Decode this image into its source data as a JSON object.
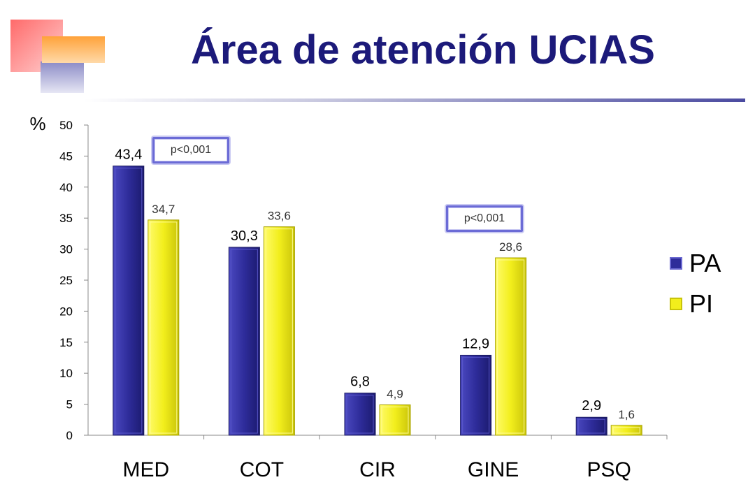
{
  "slide": {
    "title": "Área de atención UCIAS"
  },
  "chart_data": {
    "type": "bar",
    "categories": [
      "MED",
      "COT",
      "CIR",
      "GINE",
      "PSQ"
    ],
    "series": [
      {
        "name": "PA",
        "values": [
          43.4,
          30.3,
          6.8,
          12.9,
          2.9
        ],
        "labels": [
          "43,4",
          "30,3",
          "6,8",
          "12,9",
          "2,9"
        ],
        "color": "#2e2c9a"
      },
      {
        "name": "PI",
        "values": [
          34.7,
          33.6,
          4.9,
          28.6,
          1.6
        ],
        "labels": [
          "34,7",
          "33,6",
          "4,9",
          "28,6",
          "1,6"
        ],
        "color": "#f2ee1c"
      }
    ],
    "ylabel": "%",
    "ylim": [
      0,
      50
    ],
    "yticks": [
      "0",
      "5",
      "10",
      "15",
      "20",
      "25",
      "30",
      "35",
      "40",
      "45",
      "50"
    ],
    "grid": false,
    "legend_position": "right",
    "annotations": [
      {
        "text": "p<0,001",
        "category": "MED"
      },
      {
        "text": "p<0,001",
        "category": "GINE"
      }
    ]
  }
}
